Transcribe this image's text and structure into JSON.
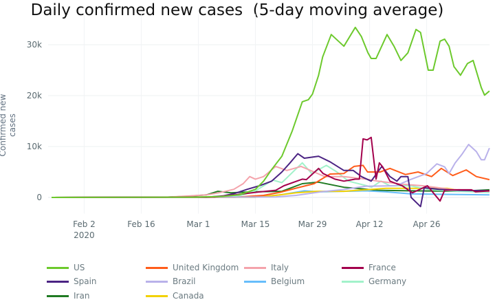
{
  "chart_data": {
    "type": "line",
    "title": "Daily confirmed new cases  (5-day moving average)",
    "xlabel": "",
    "ylabel": "Confirmed new cases",
    "x_start_date": "2020-01-25",
    "x_unit": "days since start date",
    "xlim": [
      -1,
      109
    ],
    "ylim": [
      -2.5,
      36
    ],
    "y_unit": "thousands",
    "yticks": [
      {
        "value": 0,
        "label": "0"
      },
      {
        "value": 10,
        "label": "10k"
      },
      {
        "value": 20,
        "label": "20k"
      },
      {
        "value": 30,
        "label": "30k"
      }
    ],
    "xticks": [
      {
        "value": 8,
        "label": "Feb 2",
        "sub": "2020"
      },
      {
        "value": 22,
        "label": "Feb 16"
      },
      {
        "value": 36,
        "label": "Mar 1"
      },
      {
        "value": 50,
        "label": "Mar 15"
      },
      {
        "value": 64,
        "label": "Mar 29"
      },
      {
        "value": 78,
        "label": "Apr 12"
      },
      {
        "value": 92,
        "label": "Apr 26"
      }
    ],
    "grid": true,
    "legend_position": "bottom",
    "series": [
      {
        "name": "US",
        "color": "#6cc92c",
        "points": [
          [
            0,
            0
          ],
          [
            35,
            0.05
          ],
          [
            42,
            0.2
          ],
          [
            46,
            0.5
          ],
          [
            50,
            1.6
          ],
          [
            52,
            3.2
          ],
          [
            54,
            5.5
          ],
          [
            56.5,
            8.1
          ],
          [
            59,
            13
          ],
          [
            61.5,
            18.8
          ],
          [
            63,
            19.2
          ],
          [
            64,
            20.3
          ],
          [
            65.5,
            24
          ],
          [
            66.5,
            27.6
          ],
          [
            68.6,
            32
          ],
          [
            71.7,
            29.7
          ],
          [
            74.5,
            33.4
          ],
          [
            76,
            31.6
          ],
          [
            77.6,
            28.4
          ],
          [
            78.4,
            27.3
          ],
          [
            79.6,
            27.3
          ],
          [
            82.3,
            32
          ],
          [
            84,
            29.7
          ],
          [
            85.7,
            26.9
          ],
          [
            87.4,
            28.4
          ],
          [
            89.4,
            33
          ],
          [
            90.5,
            32.4
          ],
          [
            92.4,
            25
          ],
          [
            93.6,
            25
          ],
          [
            95.3,
            30.7
          ],
          [
            96.4,
            31.1
          ],
          [
            97.5,
            29.7
          ],
          [
            98.7,
            25.7
          ],
          [
            100.3,
            24
          ],
          [
            102,
            26.3
          ],
          [
            103.4,
            26.9
          ],
          [
            105.4,
            21.6
          ],
          [
            106.2,
            20.1
          ],
          [
            107.4,
            20.9
          ]
        ]
      },
      {
        "name": "United Kingdom",
        "color": "#ff5c1a",
        "points": [
          [
            0,
            0
          ],
          [
            45,
            0.05
          ],
          [
            52,
            0.4
          ],
          [
            56,
            1
          ],
          [
            60.4,
            1.9
          ],
          [
            64.4,
            2.7
          ],
          [
            68.3,
            4.6
          ],
          [
            71.7,
            4.7
          ],
          [
            74.2,
            6.1
          ],
          [
            76.4,
            6.3
          ],
          [
            77.5,
            5
          ],
          [
            80.6,
            5
          ],
          [
            83,
            5.7
          ],
          [
            86.8,
            4.5
          ],
          [
            89.9,
            5
          ],
          [
            93.2,
            4.1
          ],
          [
            95.6,
            5.7
          ],
          [
            98.4,
            4.3
          ],
          [
            101.7,
            5.4
          ],
          [
            104.2,
            4.1
          ],
          [
            107.4,
            3.5
          ]
        ]
      },
      {
        "name": "Italy",
        "color": "#f4a3ab",
        "points": [
          [
            0,
            0
          ],
          [
            28,
            0.05
          ],
          [
            34,
            0.3
          ],
          [
            38,
            0.5
          ],
          [
            41,
            0.9
          ],
          [
            44.7,
            1.6
          ],
          [
            47,
            2.7
          ],
          [
            48.6,
            4.1
          ],
          [
            50,
            3.6
          ],
          [
            52,
            4.1
          ],
          [
            55,
            6.1
          ],
          [
            57.7,
            5.3
          ],
          [
            61.2,
            6.1
          ],
          [
            64.4,
            5
          ],
          [
            67,
            4.1
          ],
          [
            71.7,
            4.1
          ],
          [
            77.2,
            3.6
          ],
          [
            80,
            3.2
          ],
          [
            86,
            2.6
          ],
          [
            91,
            2.3
          ],
          [
            98,
            1.6
          ],
          [
            107.4,
            1.2
          ]
        ]
      },
      {
        "name": "France",
        "color": "#a3004c",
        "points": [
          [
            0,
            0
          ],
          [
            40,
            0.1
          ],
          [
            45,
            0.5
          ],
          [
            50,
            1
          ],
          [
            55,
            1.4
          ],
          [
            57,
            2.3
          ],
          [
            61.5,
            3.6
          ],
          [
            62.5,
            3.5
          ],
          [
            65.5,
            5.7
          ],
          [
            66.6,
            4.7
          ],
          [
            69.5,
            3.6
          ],
          [
            71.7,
            3.2
          ],
          [
            74.5,
            3.6
          ],
          [
            75.5,
            3.6
          ],
          [
            76.4,
            11.5
          ],
          [
            77.4,
            11.3
          ],
          [
            78.4,
            11.8
          ],
          [
            79.6,
            3.6
          ],
          [
            80.4,
            6.8
          ],
          [
            81.3,
            5.9
          ],
          [
            83,
            3.2
          ],
          [
            84.6,
            2.7
          ],
          [
            86,
            2.3
          ],
          [
            88.5,
            0.9
          ],
          [
            92.2,
            2.3
          ],
          [
            95.3,
            -0.7
          ],
          [
            96.4,
            1.4
          ],
          [
            100,
            1.5
          ],
          [
            103,
            1.5
          ],
          [
            104,
            1.1
          ],
          [
            107.4,
            1.3
          ]
        ]
      },
      {
        "name": "Spain",
        "color": "#4b2383",
        "points": [
          [
            0,
            0
          ],
          [
            38,
            0.05
          ],
          [
            42,
            0.3
          ],
          [
            45,
            0.8
          ],
          [
            48,
            1.6
          ],
          [
            51,
            2.3
          ],
          [
            54,
            3.2
          ],
          [
            56.5,
            5
          ],
          [
            58.5,
            6.8
          ],
          [
            60.4,
            8.6
          ],
          [
            62,
            7.7
          ],
          [
            65.5,
            8.1
          ],
          [
            68.3,
            7
          ],
          [
            71.7,
            5.3
          ],
          [
            74,
            5.3
          ],
          [
            76,
            4.1
          ],
          [
            78.4,
            3.2
          ],
          [
            81,
            6.1
          ],
          [
            83,
            4.1
          ],
          [
            84.7,
            3.2
          ],
          [
            85.7,
            4.1
          ],
          [
            87.4,
            4.1
          ],
          [
            88.2,
            0
          ],
          [
            90.5,
            -1.8
          ],
          [
            91.4,
            1.9
          ],
          [
            95,
            1.6
          ],
          [
            100,
            1.4
          ],
          [
            107.4,
            1.3
          ]
        ]
      },
      {
        "name": "Brazil",
        "color": "#b9b1ea",
        "points": [
          [
            0,
            0
          ],
          [
            55,
            0.1
          ],
          [
            60,
            0.4
          ],
          [
            66,
            1.1
          ],
          [
            72,
            1.6
          ],
          [
            77,
            2.2
          ],
          [
            84.5,
            2.3
          ],
          [
            88,
            3.5
          ],
          [
            92,
            4.7
          ],
          [
            94.5,
            6.6
          ],
          [
            96.4,
            6
          ],
          [
            97.5,
            4.7
          ],
          [
            99,
            6.8
          ],
          [
            100.6,
            8.4
          ],
          [
            102.3,
            10.4
          ],
          [
            104.2,
            9
          ],
          [
            105.4,
            7.4
          ],
          [
            106.2,
            7.4
          ],
          [
            107.4,
            9.7
          ]
        ]
      },
      {
        "name": "Belgium",
        "color": "#66bdfb",
        "points": [
          [
            0,
            0
          ],
          [
            50,
            0.05
          ],
          [
            56,
            0.5
          ],
          [
            62,
            1.3
          ],
          [
            66,
            1.1
          ],
          [
            77,
            1.3
          ],
          [
            82,
            1.1
          ],
          [
            88,
            0.7
          ],
          [
            98,
            0.6
          ],
          [
            107.4,
            0.5
          ]
        ]
      },
      {
        "name": "Germany",
        "color": "#a2f2ca",
        "points": [
          [
            0,
            0
          ],
          [
            42,
            0.05
          ],
          [
            46,
            0.3
          ],
          [
            50,
            1.3
          ],
          [
            54.3,
            3.4
          ],
          [
            56.5,
            2.9
          ],
          [
            61.5,
            6.8
          ],
          [
            63.8,
            4.7
          ],
          [
            67.4,
            6.3
          ],
          [
            70,
            5
          ],
          [
            72.8,
            3.2
          ],
          [
            77.3,
            2.3
          ],
          [
            78.5,
            2
          ],
          [
            80.8,
            3.2
          ],
          [
            83,
            2.3
          ],
          [
            88,
            2.3
          ],
          [
            93,
            1.5
          ],
          [
            100,
            1.2
          ],
          [
            107.4,
            1
          ]
        ]
      },
      {
        "name": "Iran",
        "color": "#1f7a22",
        "points": [
          [
            0,
            0
          ],
          [
            28,
            0.05
          ],
          [
            33,
            0.2
          ],
          [
            38,
            0.5
          ],
          [
            40.8,
            1.2
          ],
          [
            44,
            0.9
          ],
          [
            49,
            1.1
          ],
          [
            56.5,
            1.2
          ],
          [
            61.5,
            2.7
          ],
          [
            65.5,
            3
          ],
          [
            71.7,
            2
          ],
          [
            80,
            1.4
          ],
          [
            88,
            1.3
          ],
          [
            100,
            1.2
          ],
          [
            107.4,
            1.5
          ]
        ]
      },
      {
        "name": "Canada",
        "color": "#f2d100",
        "points": [
          [
            0,
            0
          ],
          [
            50,
            0.05
          ],
          [
            55,
            0.4
          ],
          [
            60,
            0.9
          ],
          [
            65,
            1.2
          ],
          [
            71.7,
            1.2
          ],
          [
            77,
            1.5
          ],
          [
            82,
            1.8
          ],
          [
            88,
            1.8
          ],
          [
            97,
            1.8
          ],
          [
            100,
            1.4
          ],
          [
            107.4,
            1.2
          ]
        ]
      }
    ]
  }
}
